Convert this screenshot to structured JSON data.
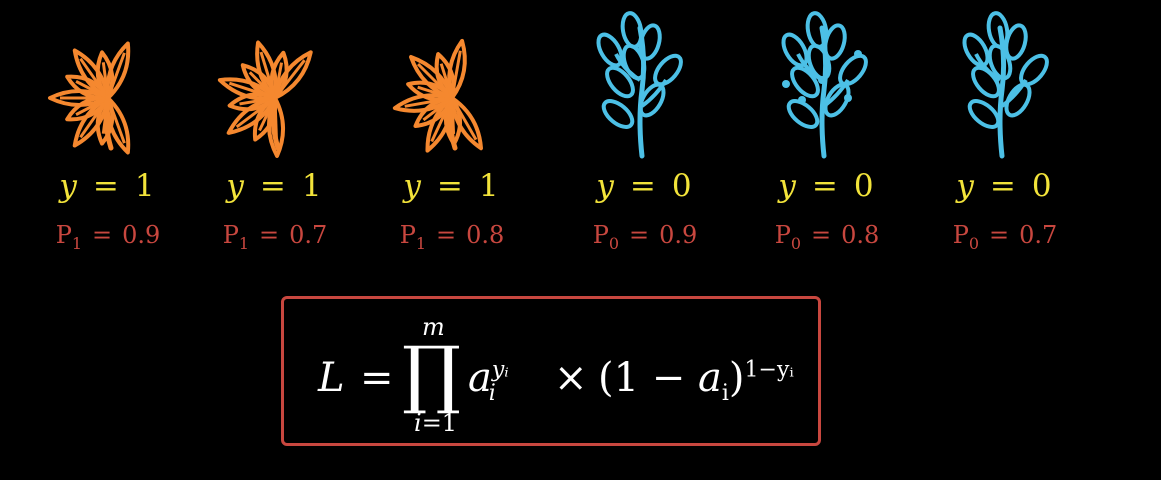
{
  "items": [
    {
      "kind": "leaf-orange",
      "y_var": "y",
      "y_eq": "=",
      "y_val": "1",
      "p_base": "P",
      "p_sub": "1",
      "p_eq": "=",
      "p_val": "0.9"
    },
    {
      "kind": "leaf-orange",
      "y_var": "y",
      "y_eq": "=",
      "y_val": "1",
      "p_base": "P",
      "p_sub": "1",
      "p_eq": "=",
      "p_val": "0.7"
    },
    {
      "kind": "leaf-orange",
      "y_var": "y",
      "y_eq": "=",
      "y_val": "1",
      "p_base": "P",
      "p_sub": "1",
      "p_eq": "=",
      "p_val": "0.8"
    },
    {
      "kind": "branch-blue",
      "y_var": "y",
      "y_eq": "=",
      "y_val": "0",
      "p_base": "P",
      "p_sub": "0",
      "p_eq": "=",
      "p_val": "0.9"
    },
    {
      "kind": "branch-blue",
      "y_var": "y",
      "y_eq": "=",
      "y_val": "0",
      "p_base": "P",
      "p_sub": "0",
      "p_eq": "=",
      "p_val": "0.8"
    },
    {
      "kind": "branch-blue",
      "y_var": "y",
      "y_eq": "=",
      "y_val": "0",
      "p_base": "P",
      "p_sub": "0",
      "p_eq": "=",
      "p_val": "0.7"
    }
  ],
  "formula": {
    "lhs": "L",
    "eq": "=",
    "prod": "∏",
    "upper": "m",
    "lower_var": "i",
    "lower_rest": "=1",
    "a": "a",
    "a_sub": "i",
    "a_sup": "yᵢ",
    "times": "×",
    "paren_open": "(1 − ",
    "paren_a": "a",
    "paren_a_sub": "i",
    "paren_close": ")",
    "paren_sup": "1−yᵢ"
  },
  "colors": {
    "background": "#000000",
    "leaf": "#f5882f",
    "branch": "#4cc0e6",
    "y_label": "#f2e33a",
    "p_label": "#c8473f",
    "formula_border": "#c8473f",
    "formula_text": "#ffffff"
  }
}
